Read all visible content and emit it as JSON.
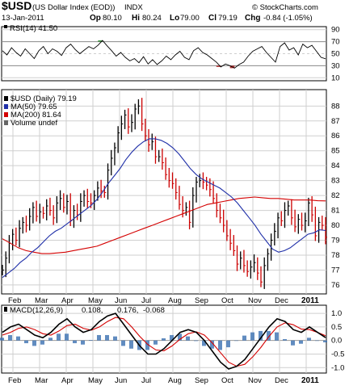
{
  "header": {
    "ticker": "$USD",
    "name": "(US Dollar Index (EOD))",
    "exchange": "INDX",
    "copyright": "© StockCharts.com",
    "date": "13-Jan-2011",
    "quote": {
      "op_label": "Op",
      "op": "80.10",
      "hi_label": "Hi",
      "hi": "80.24",
      "lo_label": "Lo",
      "lo": "79.00",
      "cl_label": "Cl",
      "cl": "79.19",
      "chg_label": "Chg",
      "chg": "-0.84 (-1.05%)"
    }
  },
  "colors": {
    "price": "#000000",
    "down_bar": "#cc0000",
    "ma50": "#1f2fa8",
    "ma200": "#d40000",
    "rsi": "#000000",
    "macd": "#000000",
    "signal": "#d40000",
    "histogram": "#3a6fb0",
    "grid": "#cfcfcf",
    "rsi_fill_high": "#2e8b2e",
    "rsi_fill_low": "#b03030"
  },
  "chart_data": [
    {
      "type": "line",
      "panel": "rsi",
      "legend": "RSI(14) 41.50",
      "y_ticks": [
        90,
        70,
        50,
        30,
        10
      ],
      "ylim": [
        10,
        90
      ],
      "grid": true,
      "series": [
        {
          "name": "RSI(14)",
          "values": [
            55,
            48,
            60,
            52,
            46,
            58,
            50,
            42,
            55,
            62,
            50,
            58,
            54,
            47,
            60,
            66,
            57,
            50,
            56,
            62,
            58,
            64,
            72,
            63,
            55,
            46,
            52,
            44,
            38,
            42,
            35,
            45,
            33,
            40,
            32,
            38,
            46,
            40,
            48,
            54,
            44,
            40,
            55,
            60,
            52,
            48,
            42,
            36,
            28,
            33,
            30,
            26,
            32,
            36,
            46,
            54,
            58,
            62,
            52,
            44,
            36,
            62,
            68,
            56,
            60,
            48,
            66,
            60,
            64,
            54,
            44,
            41.5
          ]
        }
      ]
    },
    {
      "type": "line",
      "panel": "price",
      "legend": [
        {
          "label": "$USD (Daily) 79.19"
        },
        {
          "label": "MA(50) 79.65"
        },
        {
          "label": "MA(200) 81.64"
        },
        {
          "label": "Volume undef"
        }
      ],
      "x_labels": [
        "Feb",
        "Mar",
        "Apr",
        "May",
        "Jun",
        "Jul",
        "Aug",
        "Sep",
        "Oct",
        "Nov",
        "Dec",
        "2011"
      ],
      "y_ticks": [
        88,
        87,
        86,
        85,
        84,
        83,
        82,
        81,
        80,
        79,
        78,
        77,
        76
      ],
      "ylim": [
        75.4,
        89.1
      ],
      "grid": true,
      "series": [
        {
          "name": "$USD",
          "values": [
            77.0,
            77.8,
            78.8,
            79.4,
            79.0,
            79.8,
            80.2,
            80.0,
            80.6,
            81.2,
            80.6,
            80.9,
            80.8,
            81.3,
            81.0,
            80.5,
            81.5,
            81.8,
            81.2,
            81.6,
            80.3,
            81.0,
            80.7,
            81.6,
            82.0,
            81.6,
            81.5,
            82.0,
            82.5,
            82.3,
            82.2,
            83.7,
            84.5,
            85.2,
            86.2,
            86.8,
            87.4,
            86.6,
            86.9,
            87.8,
            88.0,
            86.8,
            86.0,
            85.4,
            85.6,
            84.6,
            84.6,
            84.2,
            83.4,
            83.0,
            82.8,
            82.2,
            81.4,
            81.0,
            81.2,
            80.2,
            82.0,
            82.9,
            83.0,
            82.9,
            82.7,
            82.4,
            81.8,
            81.0,
            80.5,
            80.0,
            79.3,
            78.8,
            78.3,
            77.4,
            77.8,
            77.3,
            76.9,
            77.2,
            77.5,
            76.8,
            76.2,
            77.3,
            78.1,
            79.0,
            79.6,
            80.5,
            80.3,
            81.0,
            81.3,
            80.5,
            79.9,
            80.4,
            80.0,
            80.3,
            81.5,
            80.7,
            79.3,
            80.2,
            80.0,
            79.2
          ]
        },
        {
          "name": "MA(50)",
          "values": [
            76.5,
            76.8,
            77.1,
            77.5,
            77.8,
            78.2,
            78.5,
            78.9,
            79.3,
            79.6,
            79.8,
            80.1,
            80.4,
            80.7,
            81.0,
            81.3,
            81.7,
            82.2,
            82.8,
            83.3,
            83.8,
            84.4,
            84.9,
            85.3,
            85.6,
            85.8,
            85.8,
            85.7,
            85.5,
            85.2,
            84.8,
            84.3,
            83.8,
            83.4,
            83.1,
            82.9,
            82.7,
            82.5,
            82.2,
            81.9,
            81.5,
            81.0,
            80.5,
            80.0,
            79.4,
            78.9,
            78.4,
            78.2,
            78.3,
            78.5,
            78.8,
            79.1,
            79.4,
            79.5,
            79.7,
            79.65
          ]
        },
        {
          "name": "MA(200)",
          "values": [
            79.1,
            78.8,
            78.5,
            78.3,
            78.2,
            78.1,
            78.1,
            78.15,
            78.2,
            78.3,
            78.4,
            78.5,
            78.6,
            78.8,
            79.0,
            79.2,
            79.4,
            79.6,
            79.8,
            80.0,
            80.2,
            80.4,
            80.6,
            80.8,
            81.0,
            81.2,
            81.4,
            81.5,
            81.6,
            81.7,
            81.8,
            81.85,
            81.9,
            81.85,
            81.8,
            81.8,
            81.75,
            81.7,
            81.7,
            81.7,
            81.65,
            81.64
          ]
        }
      ]
    },
    {
      "type": "line",
      "panel": "macd",
      "legend": [
        {
          "label": "MACD(12,26,9)"
        },
        {
          "label": "0.108,"
        },
        {
          "label": "0.176,"
        },
        {
          "label": "-0.068"
        }
      ],
      "x_labels": [
        "Feb",
        "Mar",
        "Apr",
        "May",
        "Jun",
        "Jul",
        "Aug",
        "Sep",
        "Oct",
        "Nov",
        "Dec",
        "2011"
      ],
      "y_ticks": [
        1.0,
        0.5,
        0.0,
        -0.5,
        -1.0
      ],
      "ylim": [
        -1.2,
        1.3
      ],
      "grid": true,
      "series": [
        {
          "name": "MACD",
          "values": [
            0.3,
            0.5,
            0.6,
            0.4,
            0.2,
            0.1,
            0.3,
            0.6,
            0.8,
            0.5,
            0.3,
            0.4,
            0.7,
            0.9,
            1.0,
            0.6,
            0.2,
            -0.2,
            -0.5,
            -0.5,
            -0.3,
            0.0,
            0.3,
            0.4,
            0.3,
            0.0,
            -0.4,
            -0.8,
            -1.05,
            -0.95,
            -0.7,
            -0.3,
            0.1,
            0.5,
            0.8,
            0.7,
            0.4,
            0.3,
            0.5,
            0.3,
            0.108
          ]
        },
        {
          "name": "Signal",
          "values": [
            0.2,
            0.3,
            0.45,
            0.5,
            0.4,
            0.25,
            0.2,
            0.35,
            0.55,
            0.6,
            0.45,
            0.38,
            0.5,
            0.7,
            0.85,
            0.8,
            0.5,
            0.15,
            -0.15,
            -0.35,
            -0.38,
            -0.2,
            0.05,
            0.25,
            0.32,
            0.2,
            -0.1,
            -0.45,
            -0.8,
            -0.95,
            -0.88,
            -0.6,
            -0.25,
            0.15,
            0.5,
            0.65,
            0.58,
            0.42,
            0.4,
            0.3,
            0.176
          ]
        },
        {
          "name": "Histogram",
          "values": [
            0.1,
            0.2,
            0.15,
            -0.1,
            -0.2,
            -0.15,
            0.1,
            0.25,
            0.25,
            -0.1,
            -0.15,
            0.02,
            0.2,
            0.2,
            0.15,
            -0.2,
            -0.3,
            -0.35,
            -0.35,
            -0.15,
            0.08,
            0.2,
            0.25,
            0.15,
            -0.02,
            -0.2,
            -0.3,
            -0.35,
            -0.25,
            0.0,
            0.18,
            0.3,
            0.35,
            0.35,
            0.3,
            0.05,
            -0.18,
            -0.12,
            0.1,
            0.0,
            -0.068
          ]
        }
      ]
    }
  ]
}
